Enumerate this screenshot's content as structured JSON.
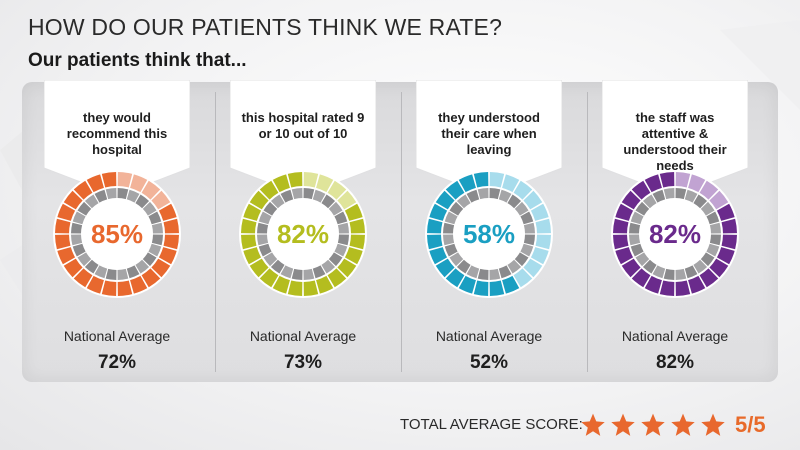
{
  "header": {
    "title": "HOW DO OUR PATIENTS THINK WE RATE?",
    "subtitle": "Our patients think that..."
  },
  "metrics": [
    {
      "statement": "they would recommend this hospital",
      "percent_label": "85%",
      "percent": 85,
      "color": "#e8682e",
      "light_color": "#f2b399",
      "national_label": "National Average",
      "national_value": "72%"
    },
    {
      "statement": "this hospital rated 9 or 10 out of 10",
      "percent_label": "82%",
      "percent": 82,
      "color": "#b4bd1f",
      "light_color": "#dfe49a",
      "national_label": "National Average",
      "national_value": "73%"
    },
    {
      "statement": "they understood their care when leaving",
      "percent_label": "58%",
      "percent": 58,
      "color": "#1a9fc2",
      "light_color": "#a7dcec",
      "national_label": "National Average",
      "national_value": "52%"
    },
    {
      "statement": "the staff was attentive & understood their needs",
      "percent_label": "82%",
      "percent": 82,
      "color": "#6a2a8c",
      "light_color": "#c1a3d2",
      "national_label": "National Average",
      "national_value": "82%"
    }
  ],
  "footer": {
    "total_label": "TOTAL AVERAGE SCORE:",
    "stars": 5,
    "star_color": "#e8682e",
    "score": "5/5"
  }
}
